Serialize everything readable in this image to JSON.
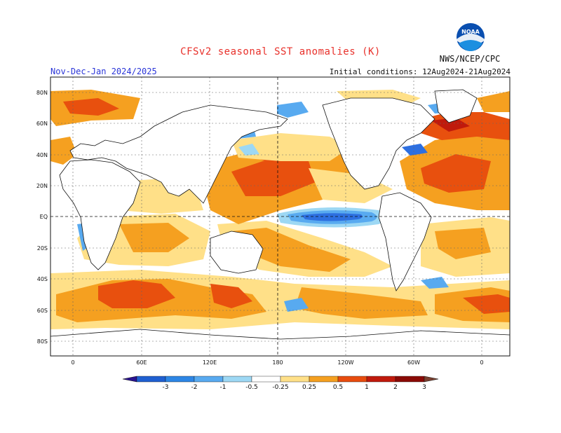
{
  "title": "CFSv2 seasonal SST anomalies (K)",
  "period": "Nov-Dec-Jan 2024/2025",
  "initial_conditions": "Initial conditions: 12Aug2024-21Aug2024",
  "agency": "NWS/NCEP/CPC",
  "logo_text": "NOAA",
  "map": {
    "lat_labels": [
      "80N",
      "60N",
      "40N",
      "20N",
      "EQ",
      "20S",
      "40S",
      "60S",
      "80S"
    ],
    "lon_labels": [
      "0",
      "60E",
      "120E",
      "180",
      "120W",
      "60W",
      "0"
    ]
  },
  "colorbar": {
    "labels": [
      "-3",
      "-2",
      "-1",
      "-0.5",
      "-0.25",
      "0.25",
      "0.5",
      "1",
      "2",
      "3"
    ],
    "colors": [
      "#2a1390",
      "#1f5fd1",
      "#2d86e5",
      "#58aaf0",
      "#9dd8f4",
      "#ffffff",
      "#ffe088",
      "#f5a020",
      "#e84c0e",
      "#c01a0c",
      "#8a0a06",
      "#7a4030"
    ]
  },
  "colors": {
    "land": "#ffffff",
    "neutral_ocean": "#ffffff",
    "positive_weak": "#ffe088",
    "positive_mid": "#f5a020",
    "positive_strong": "#e8500e",
    "positive_max": "#c01a0c",
    "negative_weak": "#9dd8f4",
    "negative_mid": "#58aaf0",
    "negative_strong": "#2d6fe0"
  }
}
